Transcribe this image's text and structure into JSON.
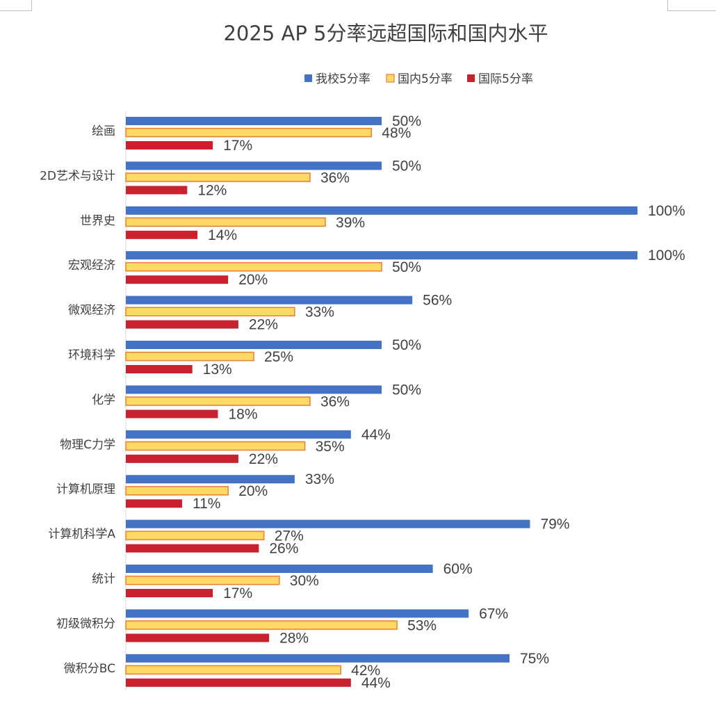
{
  "chart_data": {
    "type": "bar",
    "orientation": "horizontal",
    "title": "2025 AP 5分率远超国际和国内水平",
    "legend_position": "top",
    "xlim": [
      0,
      100
    ],
    "value_suffix": "%",
    "categories": [
      "绘画",
      "2D艺术与设计",
      "世界史",
      "宏观经济",
      "微观经济",
      "环境科学",
      "化学",
      "物理C力学",
      "计算机原理",
      "计算机科学A",
      "统计",
      "初级微积分",
      "微积分BC"
    ],
    "series": [
      {
        "name": "我校5分率",
        "color": "#4472c4",
        "values": [
          50,
          50,
          100,
          100,
          56,
          50,
          50,
          44,
          33,
          79,
          60,
          67,
          75
        ]
      },
      {
        "name": "国内5分率",
        "color": "#ffd966",
        "border_color": "#ed7d31",
        "values": [
          48,
          36,
          39,
          50,
          33,
          25,
          36,
          35,
          20,
          27,
          30,
          53,
          42
        ]
      },
      {
        "name": "国际5分率",
        "color": "#c9212e",
        "values": [
          17,
          12,
          14,
          20,
          22,
          13,
          18,
          22,
          11,
          26,
          17,
          28,
          44
        ]
      }
    ]
  }
}
